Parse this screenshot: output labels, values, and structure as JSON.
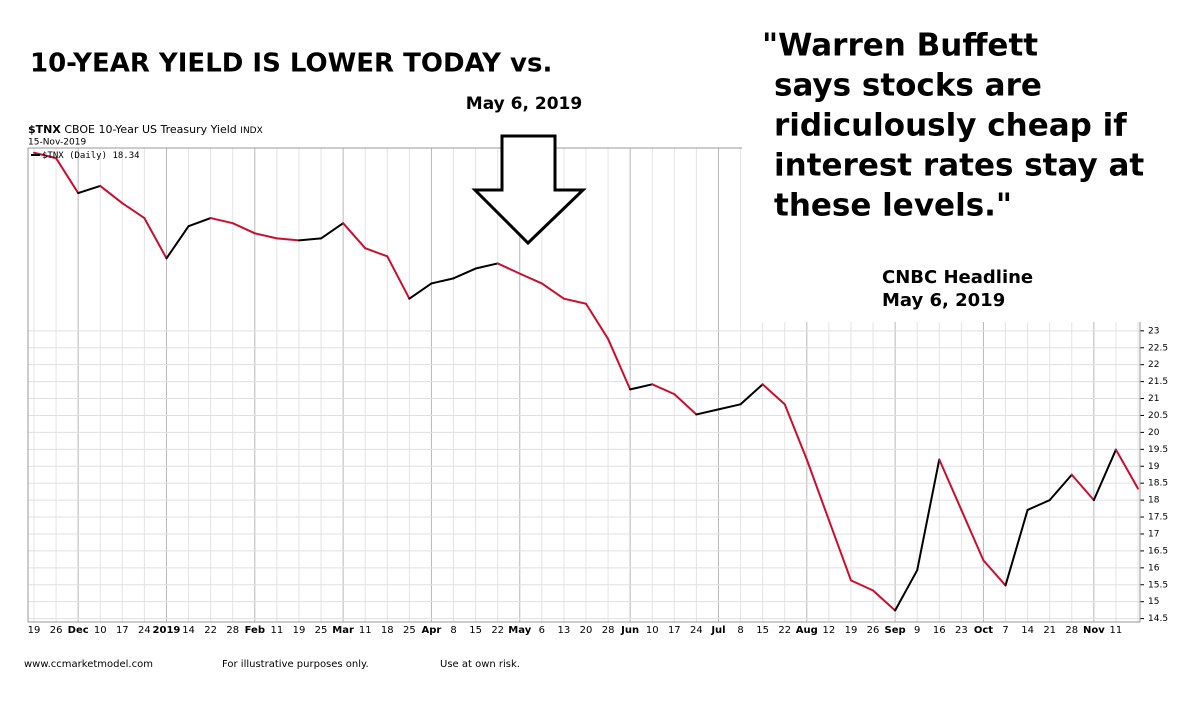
{
  "chart_data": {
    "type": "line",
    "title": "10-YEAR YIELD IS LOWER TODAY vs.",
    "arrow_label": "May 6, 2019",
    "quote": [
      "\"Warren Buffett",
      "says stocks are",
      "ridiculously cheap if",
      "interest rates stay at",
      "these levels.\""
    ],
    "source": [
      "CNBC Headline",
      "May 6, 2019"
    ],
    "symbol": "$TNX",
    "instrument": "CBOE 10-Year US Treasury Yield",
    "exchange": "INDX",
    "date": "15-Nov-2019",
    "categories": [
      "19",
      "26",
      "Dec",
      "10",
      "17",
      "24",
      "2019",
      "14",
      "22",
      "28",
      "Feb",
      "11",
      "19",
      "25",
      "Mar",
      "11",
      "18",
      "25",
      "Apr",
      "8",
      "15",
      "22",
      "May",
      "6",
      "13",
      "20",
      "28",
      "Jun",
      "10",
      "17",
      "24",
      "Jul",
      "8",
      "15",
      "22",
      "Aug",
      "12",
      "19",
      "26",
      "Sep",
      "9",
      "16",
      "23",
      "Oct",
      "7",
      "14",
      "21",
      "28",
      "Nov",
      "11",
      null
    ],
    "series": [
      {
        "name": "$TNX (Daily)",
        "up_color": "#000000",
        "down_color": "#c8102e",
        "values": [
          28.26,
          28.1,
          27.07,
          27.28,
          26.77,
          26.33,
          25.14,
          26.09,
          26.33,
          26.18,
          25.88,
          25.73,
          25.67,
          25.73,
          26.18,
          25.44,
          25.2,
          23.95,
          24.4,
          24.55,
          24.84,
          24.99,
          24.69,
          24.4,
          23.95,
          23.8,
          22.76,
          21.27,
          21.42,
          21.13,
          20.53,
          20.68,
          20.83,
          21.42,
          20.83,
          19.2,
          17.41,
          15.63,
          15.33,
          14.74,
          15.93,
          19.2,
          17.71,
          16.22,
          15.48,
          17.71,
          18.0,
          18.75,
          18.0,
          19.49,
          18.34
        ]
      }
    ],
    "ylim": [
      14.4,
      28.4
    ],
    "yticks": [
      14.5,
      15.0,
      15.5,
      16.0,
      16.5,
      17.0,
      17.5,
      18.0,
      18.5,
      19.0,
      19.5,
      20.0,
      20.5,
      21.0,
      21.5,
      22.0,
      22.5,
      23.0
    ],
    "grid": true,
    "footer": [
      "www.ccmarketmodel.com",
      "For illustrative purposes only.",
      "Use at own risk."
    ]
  }
}
